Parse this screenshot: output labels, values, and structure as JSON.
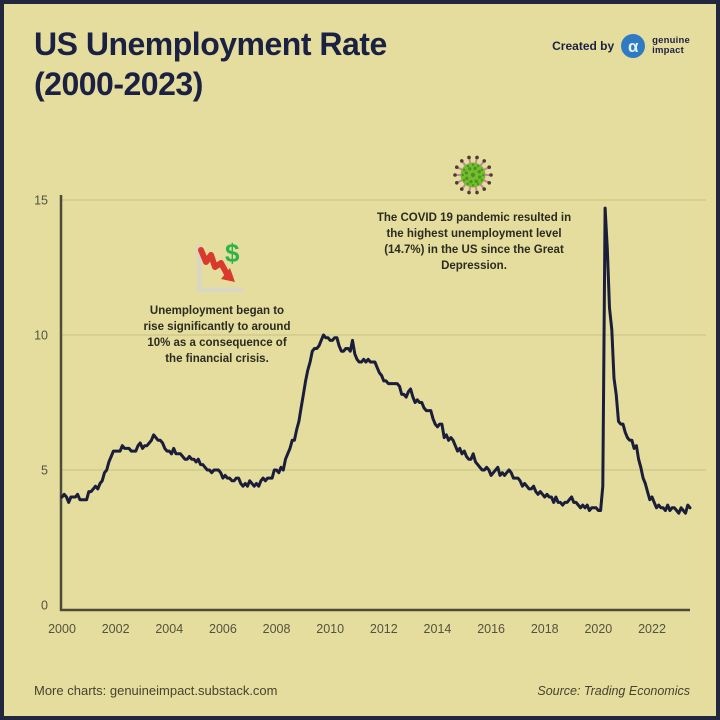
{
  "header": {
    "title": "US Unemployment Rate\n(2000-2023)",
    "created_by": "Created by",
    "brand": {
      "line1": "genuine",
      "line2": "impact",
      "logo_glyph": "α"
    }
  },
  "annotations": {
    "financial_crisis": {
      "icon": "declining-chart-dollar-icon",
      "text": "Unemployment began to\nrise significantly to around\n10% as a consequence of\nthe financial crisis."
    },
    "covid": {
      "icon": "virus-icon",
      "text": "The COVID 19 pandemic resulted in\nthe highest unemployment level\n(14.7%) in the US since the Great\nDepression."
    }
  },
  "footer": {
    "left": "More charts: genuineimpact.substack.com",
    "right": "Source: Trading Economics"
  },
  "colors": {
    "background": "#e5dd9e",
    "frame_border": "#23263f",
    "title_navy": "#1b2142",
    "line": "#1a1e3a",
    "gridline": "#d6cf92",
    "axis": "#4c4b38",
    "tick_text": "#53523f",
    "logo_blue": "#2f7bc3",
    "icon_red": "#d93a2b",
    "icon_green": "#2eb34a",
    "virus_green": "#74bd30"
  },
  "chart_data": {
    "type": "line",
    "title": "US Unemployment Rate (2000-2023)",
    "xlabel": "",
    "ylabel": "",
    "ylim": [
      0,
      15
    ],
    "grid": "horizontal",
    "legend": "none",
    "x_start_year": 2000,
    "x_step_months": 1,
    "x_ticks": [
      "2000",
      "2002",
      "2004",
      "2006",
      "2008",
      "2010",
      "2012",
      "2014",
      "2016",
      "2018",
      "2020",
      "2022"
    ],
    "y_ticks": [
      0,
      5,
      10,
      15
    ],
    "peak_value_percent": 14.7,
    "series": [
      {
        "name": "US unemployment rate (%)",
        "values_monthly": [
          4.0,
          4.1,
          4.0,
          3.8,
          4.0,
          4.0,
          4.0,
          4.1,
          3.9,
          3.9,
          3.9,
          3.9,
          4.2,
          4.2,
          4.3,
          4.4,
          4.3,
          4.5,
          4.6,
          4.9,
          5.0,
          5.3,
          5.5,
          5.7,
          5.7,
          5.7,
          5.7,
          5.9,
          5.8,
          5.8,
          5.8,
          5.7,
          5.7,
          5.7,
          5.9,
          6.0,
          5.8,
          5.9,
          5.9,
          6.0,
          6.1,
          6.3,
          6.2,
          6.1,
          6.1,
          6.0,
          5.8,
          5.7,
          5.7,
          5.6,
          5.8,
          5.6,
          5.6,
          5.6,
          5.5,
          5.4,
          5.4,
          5.5,
          5.4,
          5.4,
          5.3,
          5.4,
          5.2,
          5.2,
          5.1,
          5.0,
          5.0,
          4.9,
          5.0,
          5.0,
          5.0,
          4.9,
          4.7,
          4.8,
          4.7,
          4.7,
          4.6,
          4.6,
          4.7,
          4.7,
          4.5,
          4.4,
          4.5,
          4.4,
          4.6,
          4.5,
          4.4,
          4.5,
          4.4,
          4.6,
          4.7,
          4.6,
          4.7,
          4.7,
          4.7,
          5.0,
          5.0,
          4.9,
          5.1,
          5.0,
          5.4,
          5.6,
          5.8,
          6.1,
          6.1,
          6.5,
          6.8,
          7.3,
          7.8,
          8.3,
          8.7,
          9.0,
          9.4,
          9.5,
          9.5,
          9.6,
          9.8,
          10.0,
          9.9,
          9.9,
          9.8,
          9.8,
          9.9,
          9.9,
          9.6,
          9.4,
          9.4,
          9.5,
          9.5,
          9.4,
          9.8,
          9.3,
          9.1,
          9.0,
          9.0,
          9.1,
          9.0,
          9.1,
          9.0,
          9.0,
          9.0,
          8.8,
          8.6,
          8.5,
          8.3,
          8.3,
          8.2,
          8.2,
          8.2,
          8.2,
          8.2,
          8.1,
          7.8,
          7.8,
          7.7,
          7.9,
          8.0,
          7.7,
          7.5,
          7.6,
          7.5,
          7.5,
          7.3,
          7.2,
          7.2,
          7.2,
          6.9,
          6.7,
          6.6,
          6.7,
          6.7,
          6.2,
          6.3,
          6.1,
          6.2,
          6.1,
          5.9,
          5.7,
          5.8,
          5.6,
          5.7,
          5.5,
          5.4,
          5.4,
          5.6,
          5.3,
          5.2,
          5.1,
          5.0,
          5.0,
          5.1,
          5.0,
          4.8,
          4.9,
          5.0,
          5.1,
          4.8,
          4.9,
          4.8,
          4.9,
          5.0,
          4.9,
          4.7,
          4.7,
          4.7,
          4.6,
          4.4,
          4.5,
          4.4,
          4.3,
          4.3,
          4.4,
          4.2,
          4.1,
          4.2,
          4.1,
          4.0,
          4.1,
          4.0,
          4.0,
          3.8,
          4.0,
          3.8,
          3.8,
          3.7,
          3.8,
          3.8,
          3.9,
          4.0,
          3.8,
          3.8,
          3.7,
          3.6,
          3.7,
          3.6,
          3.7,
          3.5,
          3.6,
          3.6,
          3.6,
          3.5,
          3.5,
          4.4,
          14.7,
          13.2,
          11.0,
          10.2,
          8.4,
          7.8,
          6.8,
          6.7,
          6.7,
          6.4,
          6.2,
          6.1,
          6.1,
          5.8,
          5.9,
          5.4,
          5.1,
          4.7,
          4.5,
          4.2,
          3.9,
          4.0,
          3.8,
          3.6,
          3.7,
          3.6,
          3.6,
          3.5,
          3.7,
          3.5,
          3.6,
          3.6,
          3.5,
          3.4,
          3.6,
          3.5,
          3.4,
          3.7,
          3.6
        ]
      }
    ]
  }
}
